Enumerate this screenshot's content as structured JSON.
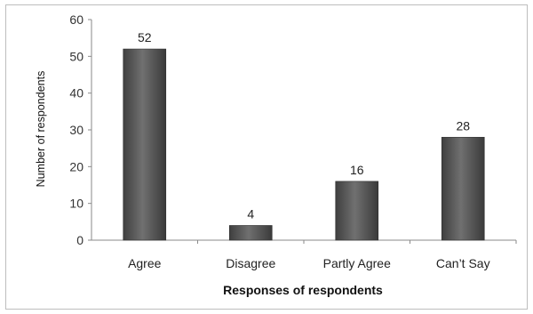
{
  "chart_data": {
    "type": "bar",
    "title": "",
    "xlabel": "Responses of respondents",
    "ylabel": "Number of respondents",
    "categories": [
      "Agree",
      "Disagree",
      "Partly Agree",
      "Can’t Say"
    ],
    "values": [
      52,
      4,
      16,
      28
    ],
    "data_labels": [
      "52",
      "4",
      "16",
      "28"
    ],
    "ylim": [
      0,
      60
    ],
    "yticks": [
      "0",
      "10",
      "20",
      "30",
      "40",
      "50",
      "60"
    ],
    "grid": false,
    "legend": "none",
    "bar_color": "#5a5a5a"
  }
}
